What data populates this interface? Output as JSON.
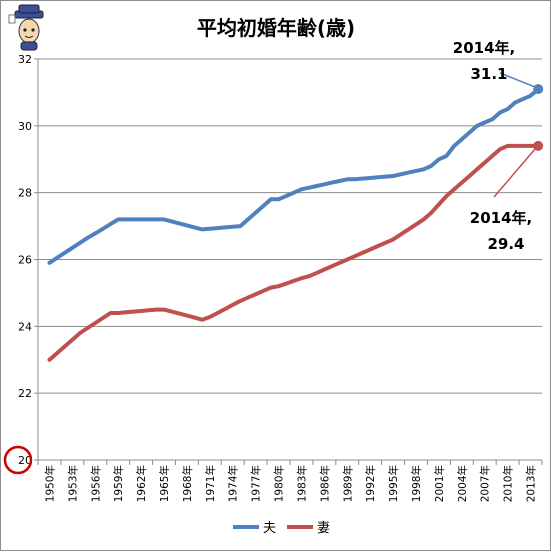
{
  "chart_data": {
    "type": "line",
    "title": "平均初婚年齢(歳)",
    "xlabel": "",
    "ylabel": "",
    "ylim": [
      20,
      32
    ],
    "yticks": [
      "20",
      "22",
      "24",
      "26",
      "28",
      "30",
      "32"
    ],
    "grid": true,
    "legend": "bottom",
    "x": [
      1950,
      1951,
      1952,
      1953,
      1954,
      1955,
      1956,
      1957,
      1958,
      1959,
      1960,
      1961,
      1962,
      1963,
      1964,
      1965,
      1966,
      1967,
      1968,
      1969,
      1970,
      1971,
      1972,
      1973,
      1974,
      1975,
      1976,
      1977,
      1978,
      1979,
      1980,
      1981,
      1982,
      1983,
      1984,
      1985,
      1986,
      1987,
      1988,
      1989,
      1990,
      1991,
      1992,
      1993,
      1994,
      1995,
      1996,
      1997,
      1998,
      1999,
      2000,
      2001,
      2002,
      2003,
      2004,
      2005,
      2006,
      2007,
      2008,
      2009,
      2010,
      2011,
      2012,
      2013,
      2014
    ],
    "xticklabels": [
      "1950年",
      "1953年",
      "1956年",
      "1959年",
      "1962年",
      "1965年",
      "1968年",
      "1971年",
      "1974年",
      "1977年",
      "1980年",
      "1983年",
      "1986年",
      "1989年",
      "1992年",
      "1995年",
      "1998年",
      "2001年",
      "2004年",
      "2007年",
      "2010年",
      "2013年"
    ],
    "series": [
      {
        "name": "夫",
        "color": "#4f81bd",
        "values": [
          25.9,
          26.05,
          26.2,
          26.35,
          26.5,
          26.65,
          26.78,
          26.92,
          27.06,
          27.2,
          27.2,
          27.2,
          27.2,
          27.2,
          27.2,
          27.2,
          27.14,
          27.08,
          27.02,
          26.96,
          26.9,
          26.92,
          26.94,
          26.96,
          26.98,
          27.0,
          27.2,
          27.4,
          27.6,
          27.8,
          27.8,
          27.9,
          28.0,
          28.1,
          28.15,
          28.2,
          28.25,
          28.3,
          28.35,
          28.4,
          28.4,
          28.42,
          28.44,
          28.46,
          28.48,
          28.5,
          28.55,
          28.6,
          28.65,
          28.7,
          28.8,
          29.0,
          29.1,
          29.4,
          29.6,
          29.8,
          30.0,
          30.1,
          30.2,
          30.4,
          30.5,
          30.7,
          30.8,
          30.9,
          31.1
        ]
      },
      {
        "name": "妻",
        "color": "#c0504d",
        "values": [
          23.0,
          23.2,
          23.4,
          23.6,
          23.8,
          23.95,
          24.1,
          24.25,
          24.4,
          24.4,
          24.42,
          24.44,
          24.46,
          24.48,
          24.5,
          24.5,
          24.44,
          24.38,
          24.32,
          24.26,
          24.2,
          24.28,
          24.4,
          24.52,
          24.64,
          24.76,
          24.86,
          24.96,
          25.06,
          25.16,
          25.2,
          25.28,
          25.36,
          25.44,
          25.5,
          25.6,
          25.7,
          25.8,
          25.9,
          26.0,
          26.1,
          26.2,
          26.3,
          26.4,
          26.5,
          26.6,
          26.75,
          26.9,
          27.05,
          27.2,
          27.4,
          27.65,
          27.9,
          28.1,
          28.3,
          28.5,
          28.7,
          28.9,
          29.1,
          29.3,
          29.4,
          29.4,
          29.4,
          29.4,
          29.4
        ]
      }
    ],
    "annotations": [
      {
        "series": "夫",
        "line1": "2014年,",
        "line2": "31.1"
      },
      {
        "series": "妻",
        "line1": "2014年,",
        "line2": "29.4"
      }
    ]
  }
}
